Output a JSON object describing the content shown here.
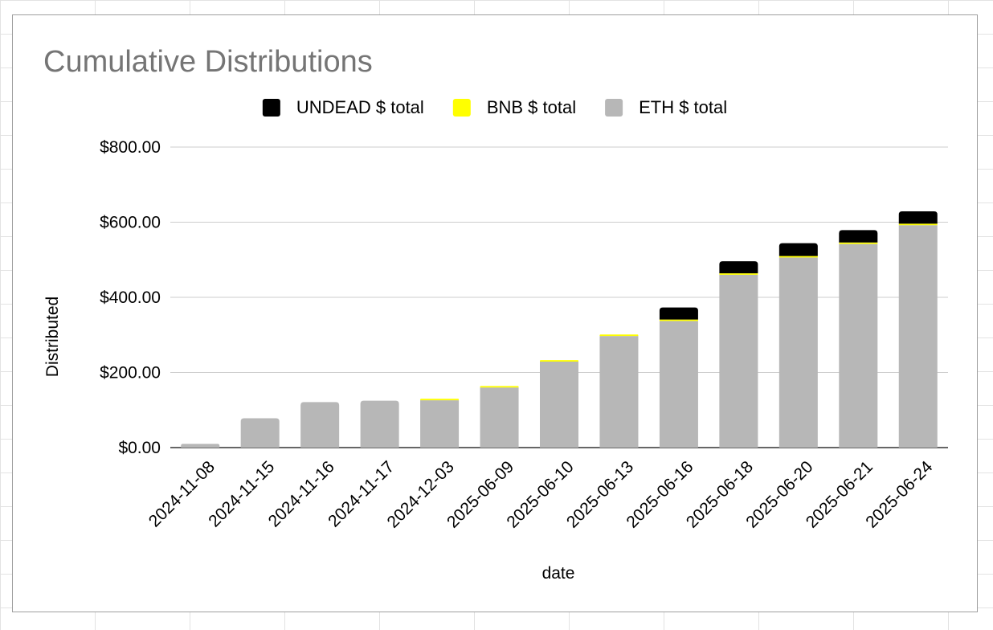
{
  "chart_data": {
    "type": "bar",
    "stacked": true,
    "title": "Cumulative Distributions",
    "xlabel": "date",
    "ylabel": "Distributed",
    "ylim": [
      0,
      800
    ],
    "yticks": [
      0,
      200,
      400,
      600,
      800
    ],
    "ytick_labels": [
      "$0.00",
      "$200.00",
      "$400.00",
      "$600.00",
      "$800.00"
    ],
    "grid": true,
    "legend_position": "top",
    "categories": [
      "2024-11-08",
      "2024-11-15",
      "2024-11-16",
      "2024-11-17",
      "2024-12-03",
      "2025-06-09",
      "2025-06-10",
      "2025-06-13",
      "2025-06-16",
      "2025-06-18",
      "2025-06-20",
      "2025-06-21",
      "2025-06-24"
    ],
    "series": [
      {
        "name": "ETH $ total",
        "color": "#b7b7b7",
        "values": [
          10,
          78,
          121,
          125,
          126,
          160,
          229,
          297,
          337,
          460,
          506,
          542,
          592
        ]
      },
      {
        "name": "BNB $ total",
        "color": "#ffff00",
        "values": [
          0,
          0,
          0,
          0,
          4,
          4,
          4,
          4,
          4,
          4,
          4,
          4,
          4
        ]
      },
      {
        "name": "UNDEAD $ total",
        "color": "#000000",
        "values": [
          0,
          0,
          0,
          0,
          0,
          0,
          0,
          0,
          32,
          32,
          34,
          33,
          33
        ]
      }
    ],
    "legend_order": [
      "UNDEAD $ total",
      "BNB $ total",
      "ETH $ total"
    ]
  }
}
